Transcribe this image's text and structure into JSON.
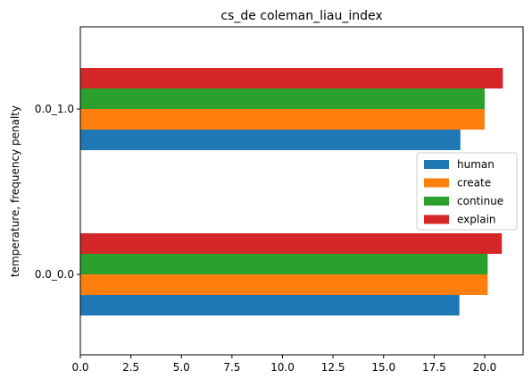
{
  "chart_data": {
    "type": "bar",
    "orientation": "horizontal",
    "title": "cs_de coleman_liau_index",
    "xlabel": "",
    "ylabel": "temperature, frequency penalty",
    "categories": [
      "0.0_0.0",
      "0.0_1.0"
    ],
    "series": [
      {
        "name": "human",
        "values": [
          18.75,
          18.8
        ],
        "color": "#1f77b4"
      },
      {
        "name": "create",
        "values": [
          20.15,
          20.0
        ],
        "color": "#ff7f0e"
      },
      {
        "name": "continue",
        "values": [
          20.15,
          20.0
        ],
        "color": "#2ca02c"
      },
      {
        "name": "explain",
        "values": [
          20.85,
          20.9
        ],
        "color": "#d62728"
      }
    ],
    "xlim": [
      0,
      21.9
    ],
    "xticks": [
      "0.0",
      "2.5",
      "5.0",
      "7.5",
      "10.0",
      "12.5",
      "15.0",
      "17.5",
      "20.0"
    ],
    "grid": false,
    "legend": "center-right"
  }
}
